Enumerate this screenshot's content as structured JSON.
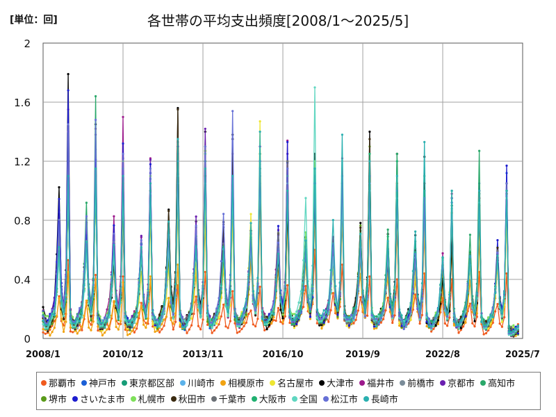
{
  "unit_label": "[単位：回]",
  "chart_data": {
    "type": "line",
    "title": "各世帯の平均支出頻度[2008/1～2025/5]",
    "ylim": [
      0,
      2
    ],
    "yticks": [
      "0",
      "0.4",
      "0.8",
      "1.2",
      "1.6",
      "2"
    ],
    "xticks": [
      "2008/1",
      "2010/12",
      "2013/11",
      "2016/10",
      "2019/9",
      "2022/8",
      "2025/7"
    ],
    "grid": true,
    "legend_position": "bottom",
    "peak_month": "December",
    "series": [
      {
        "name": "那覇市",
        "color": "#f05a1e",
        "peaks": [
          0.53,
          0.43,
          0.42,
          0.4,
          0.36,
          0.45,
          0.32,
          0.35,
          0.36,
          0.6,
          0.5,
          0.42,
          0.4,
          0.44,
          0.4,
          0.45,
          0.44,
          0.45
        ],
        "lows": [
          0.02,
          0.03,
          0.03,
          0.03,
          0.05,
          0.03,
          0.05,
          0.05,
          0.06,
          0.08,
          0.08,
          0.1,
          0.1,
          0.08,
          0.06,
          0.04,
          0.03,
          0.04
        ]
      },
      {
        "name": "神戸市",
        "color": "#1a5fd6",
        "peaks": [
          1.2,
          1.28,
          1.22,
          1.12,
          1.08,
          1.1,
          1.03,
          1.2,
          1.19,
          1.05,
          0.95,
          0.98,
          0.92,
          0.93,
          0.92,
          1.05,
          1.12,
          0.3
        ],
        "lows": [
          0.02,
          0.03,
          0.03,
          0.03,
          0.04,
          0.03,
          0.04,
          0.05,
          0.05,
          0.06,
          0.07,
          0.06,
          0.06,
          0.05,
          0.05,
          0.04,
          0.03,
          0.03
        ]
      },
      {
        "name": "東京都区部",
        "color": "#169c77",
        "peaks": [
          1.05,
          1.07,
          1.08,
          1.08,
          1.2,
          1.1,
          1.05,
          1.12,
          1.15,
          0.98,
          0.94,
          0.96,
          0.93,
          0.92,
          0.9,
          0.98,
          1.0,
          0.3
        ],
        "lows": [
          0.03,
          0.03,
          0.03,
          0.04,
          0.04,
          0.03,
          0.05,
          0.05,
          0.05,
          0.06,
          0.07,
          0.06,
          0.06,
          0.05,
          0.05,
          0.05,
          0.04,
          0.03
        ]
      },
      {
        "name": "川崎市",
        "color": "#5bb2ea",
        "peaks": [
          1.0,
          1.05,
          1.1,
          1.08,
          1.33,
          1.2,
          1.1,
          1.18,
          1.15,
          1.0,
          0.98,
          0.96,
          0.95,
          0.92,
          0.88,
          0.95,
          0.98,
          0.28
        ],
        "lows": [
          0.03,
          0.03,
          0.04,
          0.04,
          0.04,
          0.04,
          0.05,
          0.05,
          0.06,
          0.06,
          0.07,
          0.06,
          0.06,
          0.05,
          0.05,
          0.05,
          0.04,
          0.03
        ]
      },
      {
        "name": "相模原市",
        "color": "#f1a311",
        "peaks": [
          0.45,
          0.4,
          0.38,
          0.42,
          0.5,
          0.8,
          0.85,
          0.9,
          0.8,
          0.85,
          0.82,
          0.8,
          0.75,
          0.72,
          0.6,
          0.68,
          0.85,
          0.28
        ],
        "lows": [
          0.02,
          0.03,
          0.03,
          0.03,
          0.04,
          0.04,
          0.05,
          0.05,
          0.05,
          0.06,
          0.06,
          0.06,
          0.05,
          0.05,
          0.05,
          0.04,
          0.03,
          0.03
        ]
      },
      {
        "name": "名古屋市",
        "color": "#eee632",
        "peaks": [
          0.95,
          1.0,
          0.9,
          0.82,
          0.88,
          0.9,
          0.85,
          1.47,
          1.0,
          0.9,
          0.88,
          0.92,
          0.85,
          0.8,
          0.78,
          0.82,
          0.85,
          0.28
        ],
        "lows": [
          0.03,
          0.03,
          0.03,
          0.04,
          0.04,
          0.04,
          0.05,
          0.05,
          0.06,
          0.06,
          0.07,
          0.06,
          0.06,
          0.05,
          0.05,
          0.05,
          0.04,
          0.03
        ]
      },
      {
        "name": "大津市",
        "color": "#000000",
        "peaks": [
          1.79,
          1.45,
          0.95,
          1.05,
          1.56,
          1.4,
          1.38,
          1.25,
          0.9,
          1.25,
          0.98,
          1.4,
          1.25,
          1.23,
          0.68,
          0.9,
          1.0,
          0.3
        ],
        "lows": [
          0.02,
          0.03,
          0.03,
          0.04,
          0.04,
          0.04,
          0.04,
          0.05,
          0.05,
          0.06,
          0.06,
          0.06,
          0.06,
          0.05,
          0.05,
          0.04,
          0.04,
          0.03
        ]
      },
      {
        "name": "福井市",
        "color": "#9c1a8c",
        "peaks": [
          1.4,
          1.42,
          1.5,
          1.22,
          1.3,
          1.2,
          1.0,
          1.1,
          1.34,
          1.05,
          1.22,
          1.0,
          1.05,
          1.05,
          0.98,
          0.95,
          1.0,
          0.3
        ],
        "lows": [
          0.03,
          0.03,
          0.03,
          0.04,
          0.04,
          0.04,
          0.05,
          0.05,
          0.06,
          0.06,
          0.07,
          0.06,
          0.06,
          0.05,
          0.05,
          0.05,
          0.04,
          0.03
        ]
      },
      {
        "name": "前橋市",
        "color": "#7a8c99",
        "peaks": [
          1.3,
          1.2,
          1.1,
          1.0,
          1.12,
          1.3,
          1.2,
          1.3,
          1.1,
          1.2,
          0.95,
          1.0,
          0.95,
          0.9,
          0.88,
          0.95,
          1.0,
          0.3
        ],
        "lows": [
          0.03,
          0.03,
          0.03,
          0.04,
          0.04,
          0.04,
          0.05,
          0.05,
          0.06,
          0.06,
          0.07,
          0.06,
          0.06,
          0.05,
          0.05,
          0.05,
          0.04,
          0.03
        ]
      },
      {
        "name": "京都市",
        "color": "#6a1fb0",
        "peaks": [
          1.55,
          1.38,
          1.25,
          1.21,
          1.25,
          1.42,
          1.25,
          1.3,
          1.25,
          1.1,
          1.05,
          1.0,
          1.0,
          0.95,
          0.9,
          0.98,
          1.05,
          0.3
        ],
        "lows": [
          0.03,
          0.03,
          0.03,
          0.04,
          0.04,
          0.04,
          0.05,
          0.05,
          0.06,
          0.06,
          0.07,
          0.06,
          0.06,
          0.05,
          0.05,
          0.05,
          0.04,
          0.03
        ]
      },
      {
        "name": "高知市",
        "color": "#2aa86a",
        "peaks": [
          1.1,
          1.64,
          1.15,
          1.1,
          1.2,
          1.25,
          1.05,
          1.1,
          1.0,
          1.05,
          0.95,
          1.25,
          1.25,
          1.1,
          1.0,
          1.27,
          1.05,
          0.3
        ],
        "lows": [
          0.03,
          0.03,
          0.03,
          0.04,
          0.04,
          0.04,
          0.05,
          0.05,
          0.06,
          0.06,
          0.07,
          0.06,
          0.06,
          0.05,
          0.05,
          0.05,
          0.04,
          0.03
        ]
      },
      {
        "name": "堺市",
        "color": "#5a9a1a",
        "peaks": [
          1.0,
          1.05,
          1.0,
          0.95,
          1.0,
          1.27,
          1.0,
          1.05,
          1.0,
          1.0,
          0.92,
          1.3,
          1.0,
          0.95,
          0.85,
          0.95,
          0.98,
          0.3
        ],
        "lows": [
          0.03,
          0.03,
          0.03,
          0.04,
          0.04,
          0.04,
          0.05,
          0.05,
          0.06,
          0.06,
          0.07,
          0.06,
          0.06,
          0.05,
          0.05,
          0.05,
          0.04,
          0.03
        ]
      },
      {
        "name": "さいたま市",
        "color": "#1c1ccf",
        "peaks": [
          1.68,
          1.21,
          1.32,
          1.18,
          1.3,
          1.15,
          1.35,
          1.2,
          1.33,
          1.0,
          1.05,
          1.1,
          0.9,
          1.0,
          0.95,
          1.0,
          1.17,
          0.3
        ],
        "lows": [
          0.02,
          0.03,
          0.03,
          0.04,
          0.04,
          0.04,
          0.04,
          0.05,
          0.05,
          0.06,
          0.06,
          0.06,
          0.06,
          0.05,
          0.05,
          0.04,
          0.04,
          0.03
        ]
      },
      {
        "name": "札幌市",
        "color": "#7ee05a",
        "peaks": [
          1.0,
          1.1,
          1.2,
          1.1,
          1.2,
          1.15,
          1.1,
          1.25,
          1.05,
          1.2,
          1.05,
          1.0,
          1.05,
          1.0,
          0.95,
          1.0,
          0.95,
          0.3
        ],
        "lows": [
          0.08,
          0.06,
          0.05,
          0.05,
          0.06,
          0.05,
          0.06,
          0.06,
          0.07,
          0.08,
          0.08,
          0.08,
          0.08,
          0.07,
          0.06,
          0.06,
          0.05,
          0.05
        ]
      },
      {
        "name": "秋田市",
        "color": "#3a2a10",
        "peaks": [
          1.0,
          1.1,
          1.05,
          1.0,
          1.55,
          1.1,
          1.35,
          1.15,
          1.2,
          1.1,
          1.0,
          1.35,
          0.95,
          1.05,
          0.95,
          1.0,
          1.05,
          0.3
        ],
        "lows": [
          0.03,
          0.03,
          0.03,
          0.04,
          0.04,
          0.04,
          0.05,
          0.05,
          0.06,
          0.06,
          0.07,
          0.06,
          0.06,
          0.05,
          0.05,
          0.05,
          0.04,
          0.03
        ]
      },
      {
        "name": "千葉市",
        "color": "#6b7075",
        "peaks": [
          1.1,
          1.15,
          1.05,
          1.0,
          1.1,
          1.15,
          1.1,
          1.2,
          1.2,
          1.1,
          1.0,
          1.0,
          0.95,
          0.95,
          0.9,
          0.95,
          1.0,
          0.3
        ],
        "lows": [
          0.03,
          0.03,
          0.03,
          0.04,
          0.04,
          0.04,
          0.05,
          0.05,
          0.06,
          0.06,
          0.07,
          0.06,
          0.06,
          0.05,
          0.05,
          0.05,
          0.04,
          0.03
        ]
      },
      {
        "name": "大阪市",
        "color": "#1fb070",
        "peaks": [
          1.05,
          1.1,
          1.05,
          1.0,
          1.1,
          1.2,
          1.05,
          1.15,
          1.1,
          1.05,
          0.95,
          1.25,
          1.2,
          1.0,
          0.9,
          0.98,
          1.0,
          0.3
        ],
        "lows": [
          0.03,
          0.03,
          0.03,
          0.04,
          0.04,
          0.04,
          0.05,
          0.05,
          0.06,
          0.06,
          0.07,
          0.06,
          0.06,
          0.05,
          0.05,
          0.05,
          0.04,
          0.03
        ]
      },
      {
        "name": "全国",
        "color": "#5fd6c0",
        "peaks": [
          1.0,
          1.05,
          1.0,
          0.98,
          1.05,
          1.05,
          1.0,
          1.1,
          1.05,
          1.7,
          0.95,
          1.0,
          0.95,
          0.92,
          0.88,
          0.92,
          0.95,
          0.28
        ],
        "lows": [
          0.03,
          0.03,
          0.03,
          0.04,
          0.04,
          0.04,
          0.05,
          0.05,
          0.06,
          0.06,
          0.07,
          0.06,
          0.06,
          0.05,
          0.05,
          0.05,
          0.04,
          0.03
        ]
      },
      {
        "name": "松江市",
        "color": "#6670d6",
        "peaks": [
          1.45,
          1.48,
          1.25,
          1.15,
          1.2,
          1.3,
          1.54,
          1.2,
          1.15,
          1.05,
          1.1,
          1.05,
          1.0,
          0.95,
          0.95,
          1.0,
          1.05,
          0.3
        ],
        "lows": [
          0.03,
          0.03,
          0.03,
          0.04,
          0.04,
          0.04,
          0.05,
          0.05,
          0.06,
          0.06,
          0.07,
          0.06,
          0.06,
          0.05,
          0.05,
          0.05,
          0.04,
          0.03
        ]
      },
      {
        "name": "長崎市",
        "color": "#2ab0b0",
        "peaks": [
          1.1,
          1.15,
          1.1,
          1.05,
          1.35,
          1.15,
          1.1,
          1.4,
          1.0,
          1.15,
          1.38,
          1.2,
          1.1,
          1.33,
          1.0,
          1.0,
          1.0,
          0.3
        ],
        "lows": [
          0.03,
          0.03,
          0.03,
          0.04,
          0.04,
          0.04,
          0.05,
          0.05,
          0.06,
          0.06,
          0.07,
          0.06,
          0.06,
          0.05,
          0.05,
          0.05,
          0.04,
          0.03
        ]
      }
    ]
  }
}
